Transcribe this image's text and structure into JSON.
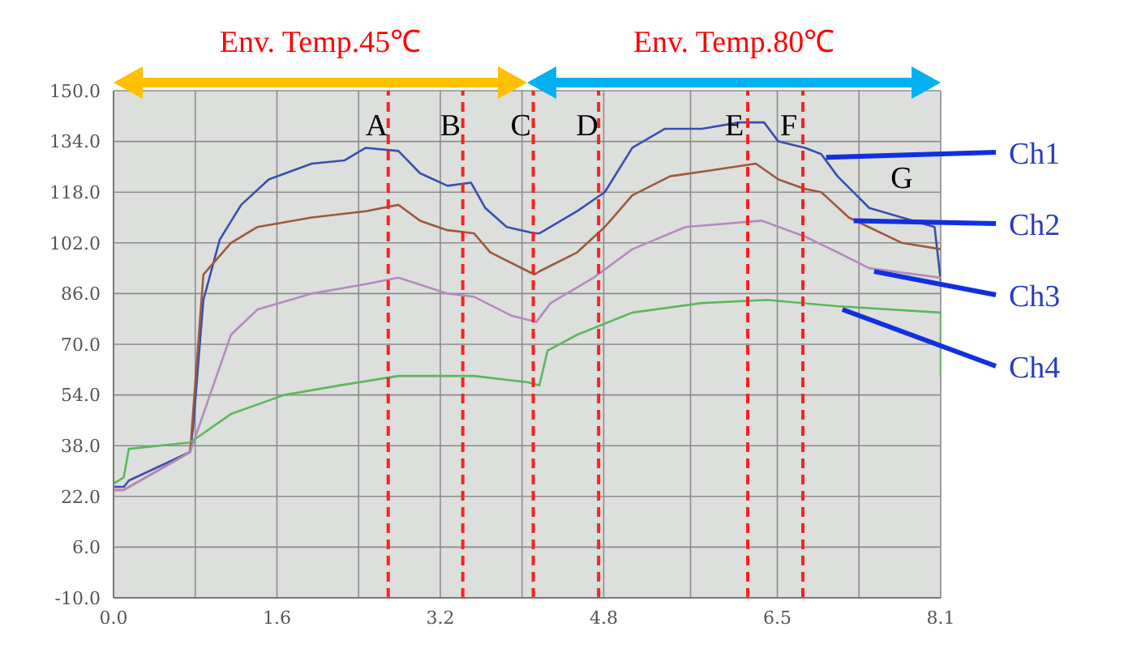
{
  "chart_data": {
    "type": "line",
    "annotations": [
      "Env. Temp.45℃",
      "Env. Temp.80℃",
      "G"
    ],
    "xlim": [
      0,
      8.1
    ],
    "ylim": [
      -10,
      150
    ],
    "xticks": [
      {
        "value": 0,
        "label": "0.0"
      },
      {
        "value": 0.8,
        "label": null
      },
      {
        "value": 1.6,
        "label": "1.6"
      },
      {
        "value": 2.4,
        "label": null
      },
      {
        "value": 3.2,
        "label": "3.2"
      },
      {
        "value": 4.0,
        "label": null
      },
      {
        "value": 4.8,
        "label": "4.8"
      },
      {
        "value": 5.65,
        "label": null
      },
      {
        "value": 6.5,
        "label": "6.5"
      },
      {
        "value": 7.3,
        "label": null
      },
      {
        "value": 8.1,
        "label": "8.1"
      }
    ],
    "yticks": [
      {
        "value": -10,
        "label": "-10.0"
      },
      {
        "value": 6,
        "label": "6.0"
      },
      {
        "value": 22,
        "label": "22.0"
      },
      {
        "value": 38,
        "label": "38.0"
      },
      {
        "value": 54,
        "label": "54.0"
      },
      {
        "value": 70,
        "label": "70.0"
      },
      {
        "value": 86,
        "label": "86.0"
      },
      {
        "value": 102,
        "label": "102.0"
      },
      {
        "value": 118,
        "label": "118.0"
      },
      {
        "value": 134,
        "label": "134.0"
      },
      {
        "value": 150,
        "label": "150.0"
      }
    ],
    "grid": true,
    "marker": "none",
    "line_style": "solid",
    "ref_lines": [
      {
        "axis": "x",
        "value": 2.69,
        "label": "A",
        "color": "#ff2020",
        "line_style": "dashed"
      },
      {
        "axis": "x",
        "value": 3.42,
        "label": "B",
        "color": "#ff2020",
        "line_style": "dashed"
      },
      {
        "axis": "x",
        "value": 4.11,
        "label": "C",
        "color": "#ff2020",
        "line_style": "dashed"
      },
      {
        "axis": "x",
        "value": 4.75,
        "label": "D",
        "color": "#ff2020",
        "line_style": "dashed"
      },
      {
        "axis": "x",
        "value": 6.21,
        "label": "E",
        "color": "#ff2020",
        "line_style": "dashed"
      },
      {
        "axis": "x",
        "value": 6.75,
        "label": "F",
        "color": "#ff2020",
        "line_style": "dashed"
      }
    ],
    "series": [
      {
        "name": "Ch1",
        "color": "#3a4fb0",
        "x": [
          0,
          0.1,
          0.15,
          0.75,
          0.78,
          0.88,
          1.04,
          1.25,
          1.52,
          1.94,
          2.26,
          2.47,
          2.79,
          3.0,
          3.27,
          3.5,
          3.64,
          3.85,
          4.12,
          4.17,
          4.54,
          4.81,
          5.08,
          5.4,
          5.76,
          6.13,
          6.37,
          6.51,
          6.77,
          6.93,
          7.09,
          7.4,
          7.72,
          8.04,
          8.1
        ],
        "values": [
          25,
          25,
          27,
          36,
          44,
          84,
          103,
          114,
          122,
          127,
          128,
          132,
          131,
          124,
          120,
          121,
          113,
          107,
          105,
          105,
          112,
          118,
          132,
          138,
          138,
          140,
          140,
          134,
          132,
          130,
          123,
          113,
          110,
          107,
          90
        ]
      },
      {
        "name": "Ch2",
        "color": "#a0583c",
        "x": [
          0,
          0.1,
          0.75,
          0.88,
          1.15,
          1.41,
          1.94,
          2.47,
          2.79,
          3.0,
          3.27,
          3.53,
          3.69,
          4.06,
          4.12,
          4.17,
          4.54,
          4.81,
          5.08,
          5.45,
          5.88,
          6.29,
          6.51,
          6.77,
          6.93,
          7.2,
          7.72,
          8.1
        ],
        "values": [
          24,
          24,
          36,
          92,
          102,
          107,
          110,
          112,
          114,
          109,
          106,
          105,
          99,
          93,
          92,
          93,
          99,
          107,
          117,
          123,
          125,
          127,
          122,
          119,
          118,
          110,
          102,
          100
        ]
      },
      {
        "name": "Ch3",
        "color": "#b58ac0",
        "x": [
          0,
          0.1,
          0.75,
          1.15,
          1.41,
          1.94,
          2.47,
          2.79,
          3.27,
          3.53,
          3.9,
          4.14,
          4.28,
          4.7,
          5.08,
          5.6,
          6.35,
          6.77,
          7.09,
          7.4,
          8.1
        ],
        "values": [
          24,
          24,
          36,
          73,
          81,
          86,
          89,
          91,
          86,
          85,
          79,
          77,
          83,
          91,
          100,
          107,
          109,
          104,
          99,
          94,
          91
        ]
      },
      {
        "name": "Ch4",
        "color": "#5cb85c",
        "x": [
          0,
          0.1,
          0.15,
          0.75,
          1.15,
          1.67,
          2.21,
          2.79,
          3.53,
          4.06,
          4.17,
          4.25,
          4.54,
          5.08,
          5.76,
          6.4,
          7.09,
          8.1,
          8.1
        ],
        "values": [
          26,
          28,
          37,
          39,
          48,
          54,
          57,
          60,
          60,
          58,
          57,
          68,
          73,
          80,
          83,
          84,
          82,
          80,
          60
        ]
      }
    ]
  }
}
